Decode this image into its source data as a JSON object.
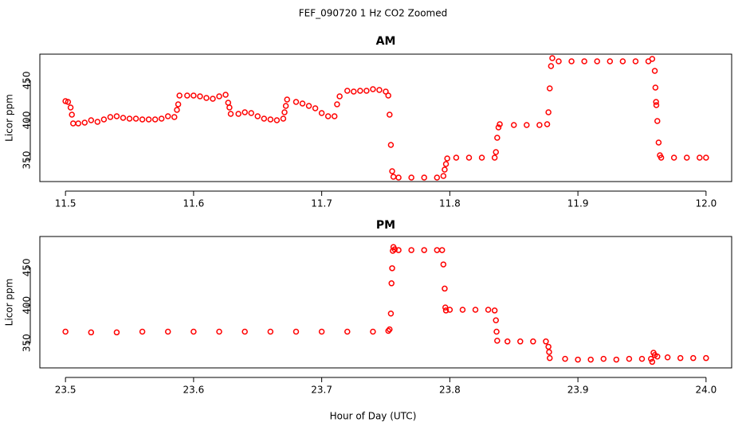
{
  "title": "FEF_090720  1 Hz CO2 Zoomed",
  "xlabel": "Hour of Day (UTC)",
  "chart_data": [
    {
      "type": "scatter",
      "title": "AM",
      "ylabel": "Licor ppm",
      "color": "#ff0000",
      "xlim": [
        11.48,
        12.02
      ],
      "ylim": [
        323,
        483
      ],
      "xticks": [
        11.5,
        11.6,
        11.7,
        11.8,
        11.9,
        {
          "value": 12,
          "label": "12.0"
        }
      ],
      "yticks": [
        350,
        400,
        450
      ],
      "x": [
        11.5,
        11.502,
        11.504,
        11.505,
        11.506,
        11.51,
        11.515,
        11.52,
        11.525,
        11.53,
        11.535,
        11.54,
        11.545,
        11.55,
        11.555,
        11.56,
        11.565,
        11.57,
        11.575,
        11.58,
        11.585,
        11.587,
        11.588,
        11.589,
        11.595,
        11.6,
        11.605,
        11.61,
        11.615,
        11.62,
        11.625,
        11.627,
        11.628,
        11.629,
        11.635,
        11.64,
        11.645,
        11.65,
        11.655,
        11.66,
        11.665,
        11.67,
        11.671,
        11.672,
        11.673,
        11.68,
        11.685,
        11.69,
        11.695,
        11.7,
        11.705,
        11.71,
        11.712,
        11.714,
        11.72,
        11.725,
        11.73,
        11.735,
        11.74,
        11.745,
        11.75,
        11.752,
        11.753,
        11.754,
        11.755,
        11.756,
        11.76,
        11.77,
        11.78,
        11.79,
        11.795,
        11.796,
        11.797,
        11.798,
        11.805,
        11.815,
        11.825,
        11.835,
        11.836,
        11.837,
        11.838,
        11.839,
        11.85,
        11.86,
        11.87,
        11.876,
        11.877,
        11.878,
        11.879,
        11.88,
        11.885,
        11.895,
        11.905,
        11.915,
        11.925,
        11.935,
        11.945,
        11.955,
        11.958,
        11.96,
        11.9605,
        11.961,
        11.9612,
        11.962,
        11.963,
        11.964,
        11.965,
        11.975,
        11.985,
        11.995,
        12.0
      ],
      "values": [
        424,
        423,
        416,
        407,
        396,
        396,
        397,
        400,
        398,
        401,
        404,
        405,
        403,
        402,
        402,
        401,
        401,
        401,
        402,
        405,
        404,
        413,
        420,
        431,
        431,
        431,
        430,
        428,
        427,
        430,
        432,
        422,
        416,
        408,
        408,
        410,
        409,
        405,
        402,
        401,
        400,
        402,
        410,
        418,
        426,
        423,
        421,
        418,
        415,
        409,
        405,
        405,
        420,
        430,
        437,
        436,
        437,
        437,
        439,
        438,
        436,
        431,
        407,
        369,
        336,
        329,
        328,
        328,
        328,
        328,
        330,
        338,
        345,
        352,
        353,
        353,
        353,
        353,
        360,
        378,
        391,
        395,
        394,
        394,
        394,
        395,
        410,
        440,
        468,
        478,
        474,
        474,
        474,
        474,
        474,
        474,
        474,
        474,
        477,
        462,
        441,
        423,
        419,
        399,
        372,
        356,
        353,
        353,
        353,
        353,
        353
      ]
    },
    {
      "type": "scatter",
      "title": "PM",
      "ylabel": "Licor ppm",
      "color": "#ff0000",
      "xlim": [
        23.48,
        24.02
      ],
      "ylim": [
        317,
        491
      ],
      "xticks": [
        23.5,
        23.6,
        23.7,
        23.8,
        23.9,
        {
          "value": 24,
          "label": "24.0"
        }
      ],
      "yticks": [
        350,
        400,
        450
      ],
      "x": [
        23.5,
        23.52,
        23.54,
        23.56,
        23.58,
        23.6,
        23.62,
        23.64,
        23.66,
        23.68,
        23.7,
        23.72,
        23.74,
        23.752,
        23.753,
        23.754,
        23.7545,
        23.755,
        23.7555,
        23.756,
        23.757,
        23.76,
        23.77,
        23.78,
        23.79,
        23.794,
        23.795,
        23.796,
        23.7965,
        23.797,
        23.8,
        23.81,
        23.82,
        23.83,
        23.835,
        23.836,
        23.8365,
        23.837,
        23.845,
        23.855,
        23.865,
        23.875,
        23.877,
        23.8775,
        23.878,
        23.89,
        23.9,
        23.91,
        23.92,
        23.93,
        23.94,
        23.95,
        23.957,
        23.958,
        23.959,
        23.96,
        23.962,
        23.97,
        23.98,
        23.99,
        24.0
      ],
      "values": [
        365,
        364,
        364,
        365,
        365,
        365,
        365,
        365,
        365,
        365,
        365,
        365,
        365,
        366,
        368,
        389,
        429,
        449,
        472,
        477,
        474,
        473,
        473,
        473,
        473,
        473,
        454,
        422,
        397,
        393,
        394,
        394,
        394,
        394,
        393,
        380,
        365,
        353,
        352,
        352,
        352,
        352,
        345,
        338,
        330,
        329,
        328,
        328,
        329,
        328,
        329,
        329,
        329,
        325,
        337,
        334,
        332,
        331,
        330,
        330,
        330
      ]
    }
  ]
}
